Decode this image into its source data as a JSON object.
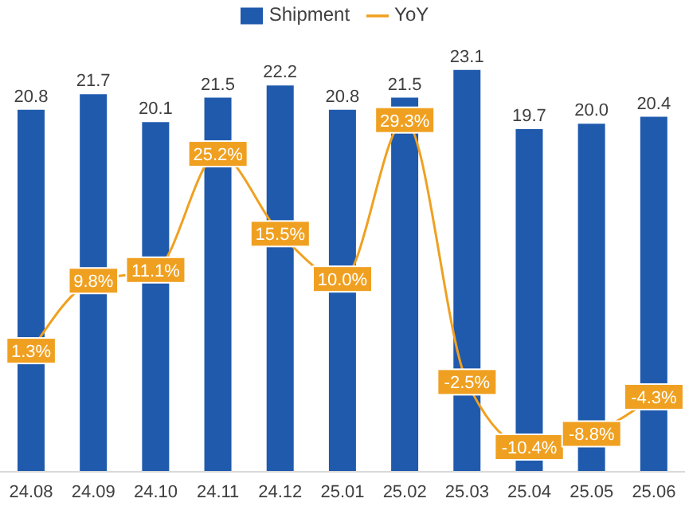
{
  "chart_data": {
    "type": "bar",
    "categories": [
      "24.08",
      "24.09",
      "24.10",
      "24.11",
      "24.12",
      "25.01",
      "25.02",
      "25.03",
      "25.04",
      "25.05",
      "25.06"
    ],
    "series": [
      {
        "name": "Shipment",
        "color": "#1f5aad",
        "values": [
          20.8,
          21.7,
          20.1,
          21.5,
          22.2,
          20.8,
          21.5,
          23.1,
          19.7,
          20.0,
          20.4
        ],
        "value_labels": [
          "20.8",
          "21.7",
          "20.1",
          "21.5",
          "22.2",
          "20.8",
          "21.5",
          "23.1",
          "19.7",
          "20.0",
          "20.4"
        ]
      },
      {
        "name": "YoY",
        "type": "line",
        "marker": "square",
        "axis": "y2",
        "color": "#f0a020",
        "values": [
          1.3,
          9.8,
          11.1,
          25.2,
          15.5,
          10.0,
          29.3,
          -2.5,
          -10.4,
          -8.8,
          -4.3
        ],
        "value_labels": [
          "1.3%",
          "9.8%",
          "11.1%",
          "25.2%",
          "15.5%",
          "10.0%",
          "29.3%",
          "-2.5%",
          "-10.4%",
          "-8.8%",
          "-4.3%"
        ]
      }
    ],
    "tick_labels": "x",
    "grid": false,
    "legend": "top",
    "line_style": "solid"
  }
}
